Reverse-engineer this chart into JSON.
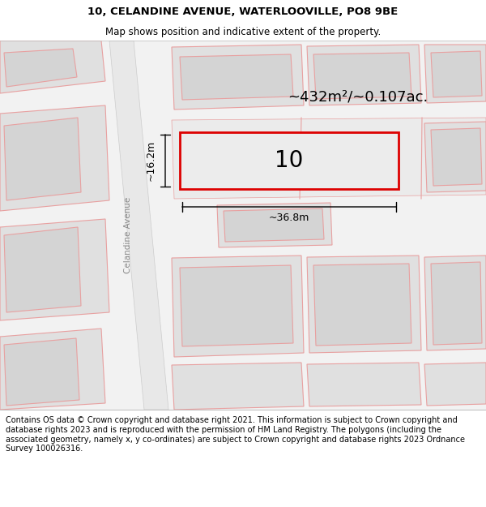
{
  "title_line1": "10, CELANDINE AVENUE, WATERLOOVILLE, PO8 9BE",
  "title_line2": "Map shows position and indicative extent of the property.",
  "footer_text": "Contains OS data © Crown copyright and database right 2021. This information is subject to Crown copyright and database rights 2023 and is reproduced with the permission of HM Land Registry. The polygons (including the associated geometry, namely x, y co-ordinates) are subject to Crown copyright and database rights 2023 Ordnance Survey 100026316.",
  "area_label": "~432m²/~0.107ac.",
  "width_label": "~36.8m",
  "height_label": "~16.2m",
  "property_number": "10",
  "road_label": "Celandine Avenue",
  "property_edge": "#dd0000",
  "pink_line": "#e8a0a0",
  "title_fontsize": 9.5,
  "subtitle_fontsize": 8.5,
  "footer_fontsize": 7.0,
  "map_bg": "#f0f0f0",
  "road_fill": "#e0e0e0",
  "block_fill": "#d4d4d4",
  "block_outer_fill": "#e0e0e0"
}
